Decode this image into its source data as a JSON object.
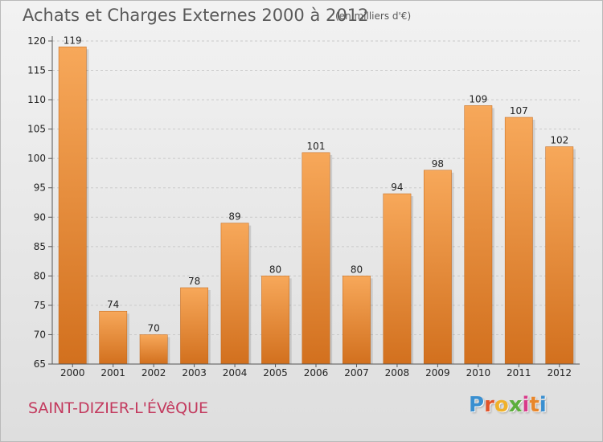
{
  "header": {
    "title": "Achats et Charges Externes 2000 à 2012",
    "subtitle": "(en milliers d'€)"
  },
  "footer": {
    "city": "SAINT-DIZIER-L'ÉVêQUE",
    "logo_letters": [
      "P",
      "r",
      "o",
      "x",
      "i",
      "t",
      "i"
    ],
    "logo_colors": [
      "#3a8fd0",
      "#e2542a",
      "#f0b12a",
      "#5cae3c",
      "#d83a8a",
      "#e8862a",
      "#3a8fd0"
    ]
  },
  "chart_data": {
    "type": "bar",
    "categories": [
      "2000",
      "2001",
      "2002",
      "2003",
      "2004",
      "2005",
      "2006",
      "2007",
      "2008",
      "2009",
      "2010",
      "2011",
      "2012"
    ],
    "values": [
      119,
      74,
      70,
      78,
      89,
      80,
      101,
      80,
      94,
      98,
      109,
      107,
      102
    ],
    "title": "Achats et Charges Externes 2000 à 2012",
    "subtitle": "(en milliers d'€)",
    "ylim": [
      65,
      120
    ],
    "yticks": [
      65,
      70,
      75,
      80,
      85,
      90,
      95,
      100,
      105,
      110,
      115,
      120
    ],
    "grid": true,
    "bar_color_top": "#f7a85a",
    "bar_color_bottom": "#d2701e"
  }
}
